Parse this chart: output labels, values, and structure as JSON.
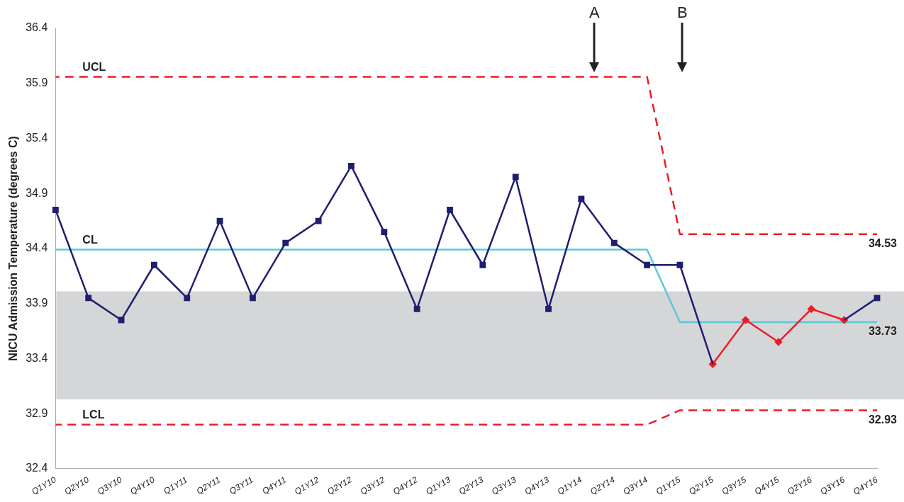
{
  "chart_data": {
    "type": "line",
    "ylabel": "NICU Admission Temperature (degrees C)",
    "categories": [
      "Q1Y10",
      "Q2Y10",
      "Q3Y10",
      "Q4Y10",
      "Q1Y11",
      "Q2Y11",
      "Q3Y11",
      "Q4Y11",
      "Q1Y12",
      "Q2Y12",
      "Q3Y12",
      "Q4Y12",
      "Q1Y13",
      "Q2Y13",
      "Q3Y13",
      "Q4Y13",
      "Q1Y14",
      "Q2Y14",
      "Q3Y14",
      "Q1Y15",
      "Q2Y15",
      "Q3Y15",
      "Q4Y15",
      "Q2Y16",
      "Q3Y16",
      "Q4Y16"
    ],
    "series": [
      {
        "color": "#1f1f6e",
        "marker": "square",
        "line_style": "solid",
        "values": [
          34.75,
          33.95,
          33.75,
          34.25,
          33.95,
          34.65,
          33.95,
          34.45,
          34.65,
          35.15,
          34.55,
          33.85,
          34.75,
          34.25,
          35.05,
          33.85,
          34.85,
          34.45,
          34.25,
          34.25,
          33.35,
          null,
          null,
          null,
          33.75,
          33.95
        ]
      },
      {
        "color": "#ee1c25",
        "marker": "diamond",
        "line_style": "solid",
        "values": [
          null,
          null,
          null,
          null,
          null,
          null,
          null,
          null,
          null,
          null,
          null,
          null,
          null,
          null,
          null,
          null,
          null,
          null,
          null,
          null,
          33.35,
          33.75,
          33.55,
          33.85,
          33.75,
          null
        ]
      },
      {
        "name": "UCL",
        "color": "#ee1c25",
        "marker": "none",
        "line_style": "dashed",
        "values": [
          35.96,
          35.96,
          35.96,
          35.96,
          35.96,
          35.96,
          35.96,
          35.96,
          35.96,
          35.96,
          35.96,
          35.96,
          35.96,
          35.96,
          35.96,
          35.96,
          35.96,
          35.96,
          35.96,
          34.53,
          34.53,
          34.53,
          34.53,
          34.53,
          34.53,
          34.53
        ],
        "value_labels": [
          null,
          null,
          null,
          null,
          null,
          null,
          null,
          null,
          null,
          null,
          null,
          null,
          null,
          null,
          null,
          null,
          null,
          null,
          null,
          null,
          null,
          null,
          null,
          null,
          null,
          "34.53"
        ]
      },
      {
        "name": "CL",
        "color": "#5bc8d8",
        "marker": "none",
        "line_style": "solid",
        "values": [
          34.39,
          34.39,
          34.39,
          34.39,
          34.39,
          34.39,
          34.39,
          34.39,
          34.39,
          34.39,
          34.39,
          34.39,
          34.39,
          34.39,
          34.39,
          34.39,
          34.39,
          34.39,
          34.39,
          33.73,
          33.73,
          33.73,
          33.73,
          33.73,
          33.73,
          33.73
        ],
        "value_labels": [
          null,
          null,
          null,
          null,
          null,
          null,
          null,
          null,
          null,
          null,
          null,
          null,
          null,
          null,
          null,
          null,
          null,
          null,
          null,
          null,
          null,
          null,
          null,
          null,
          null,
          "33.73"
        ]
      },
      {
        "name": "LCL",
        "color": "#ee1c25",
        "marker": "none",
        "line_style": "dashed",
        "values": [
          32.8,
          32.8,
          32.8,
          32.8,
          32.8,
          32.8,
          32.8,
          32.8,
          32.8,
          32.8,
          32.8,
          32.8,
          32.8,
          32.8,
          32.8,
          32.8,
          32.8,
          32.8,
          32.8,
          32.93,
          32.93,
          32.93,
          32.93,
          32.93,
          32.93,
          32.93
        ],
        "value_labels": [
          null,
          null,
          null,
          null,
          null,
          null,
          null,
          null,
          null,
          null,
          null,
          null,
          null,
          null,
          null,
          null,
          null,
          null,
          null,
          null,
          null,
          null,
          null,
          null,
          null,
          "32.93"
        ]
      }
    ],
    "bands": [
      {
        "axis": "y",
        "from": 33.03,
        "to": 34.01,
        "color": "#d5d6d8"
      }
    ],
    "annotations": [
      "A",
      "B"
    ],
    "ylim": [
      32.4,
      36.4
    ],
    "yticks": [
      32.4,
      32.9,
      33.4,
      33.9,
      34.4,
      34.9,
      35.4,
      35.9,
      36.4
    ],
    "grid": false,
    "legend": false
  }
}
